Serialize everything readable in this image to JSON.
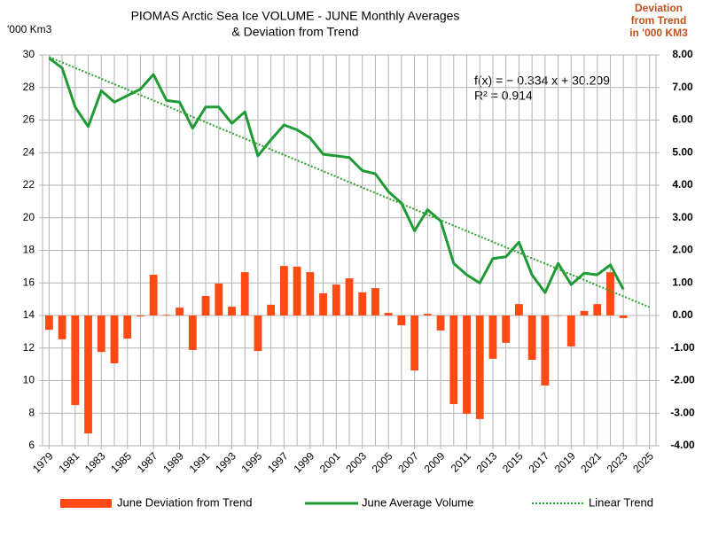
{
  "chart_data": {
    "type": "combo",
    "title": [
      "PIOMAS Arctic Sea Ice VOLUME - JUNE Monthly Averages",
      "& Deviation from Trend"
    ],
    "ylabel": "'000 Km3",
    "y2label": [
      "Deviation",
      "from Trend",
      "in '000 KM3"
    ],
    "annotations": [
      "f(x) = − 0.334 x + 30.209",
      "R² = 0.914"
    ],
    "categories": [
      "1979",
      null,
      "1981",
      null,
      "1983",
      null,
      "1985",
      null,
      "1987",
      null,
      "1989",
      null,
      "1991",
      null,
      "1993",
      null,
      "1995",
      null,
      "1997",
      null,
      "1999",
      null,
      "2001",
      null,
      "2003",
      null,
      "2005",
      null,
      "2007",
      null,
      "2009",
      null,
      "2011",
      null,
      "2013",
      null,
      "2015",
      null,
      "2017",
      null,
      "2019",
      null,
      "2021",
      null,
      "2023",
      null,
      "2025"
    ],
    "ylim": [
      6,
      30
    ],
    "yticks": [
      6,
      8,
      10,
      12,
      14,
      16,
      18,
      20,
      22,
      24,
      26,
      28,
      30
    ],
    "y2lim": [
      -4,
      8
    ],
    "y2ticks": [
      {
        "value": 8,
        "label": "8.00"
      },
      {
        "value": 7,
        "label": "7.00"
      },
      {
        "value": 6,
        "label": "6.00"
      },
      {
        "value": 5,
        "label": "5.00"
      },
      {
        "value": 4,
        "label": "4.00"
      },
      {
        "value": 3,
        "label": "3.00"
      },
      {
        "value": 2,
        "label": "2.00"
      },
      {
        "value": 1,
        "label": "1.00"
      },
      {
        "value": 0,
        "label": "0.00"
      },
      {
        "value": -1,
        "label": "-1.00"
      },
      {
        "value": -2,
        "label": "-2.00"
      },
      {
        "value": -3,
        "label": "-3.00"
      },
      {
        "value": -4,
        "label": "-4.00"
      }
    ],
    "grid": true,
    "series": [
      {
        "name": "June Deviation from Trend",
        "type": "bar",
        "axis": "y2",
        "color": "#ff4a14",
        "values": [
          -0.44,
          -0.73,
          -2.75,
          -3.62,
          -1.12,
          -1.47,
          -0.71,
          -0.03,
          1.25,
          0.02,
          0.24,
          -1.06,
          0.6,
          0.98,
          0.27,
          1.33,
          -1.09,
          0.33,
          1.52,
          1.5,
          1.33,
          0.68,
          0.95,
          1.14,
          0.71,
          0.84,
          0.08,
          -0.3,
          -1.69,
          0.05,
          -0.46,
          -2.72,
          -3.02,
          -3.18,
          -1.33,
          -0.84,
          0.35,
          -1.36,
          -2.15,
          -0.01,
          -0.95,
          0.14,
          0.35,
          1.33,
          -0.08,
          null,
          null
        ]
      },
      {
        "name": "June Average Volume",
        "type": "line",
        "color": "#1f9a35",
        "values": [
          29.8,
          29.2,
          26.8,
          25.6,
          27.8,
          27.1,
          27.5,
          27.9,
          28.8,
          27.2,
          27.1,
          25.5,
          26.8,
          26.8,
          25.8,
          26.5,
          23.8,
          24.8,
          25.7,
          25.4,
          24.9,
          23.9,
          23.8,
          23.7,
          22.9,
          22.7,
          21.6,
          20.9,
          19.2,
          20.5,
          19.8,
          17.2,
          16.5,
          16.0,
          17.5,
          17.6,
          18.5,
          16.5,
          15.4,
          17.2,
          15.9,
          16.6,
          16.5,
          17.1,
          15.6,
          null,
          null
        ]
      },
      {
        "name": "Linear Trend",
        "type": "line",
        "dotted": true,
        "color": "#2aa52a",
        "values": [
          29.875,
          29.541,
          29.207,
          28.873,
          28.539,
          28.205,
          27.871,
          27.537,
          27.203,
          26.869,
          26.535,
          26.201,
          25.867,
          25.533,
          25.199,
          24.865,
          24.531,
          24.197,
          23.863,
          23.529,
          23.195,
          22.861,
          22.527,
          22.193,
          21.859,
          21.525,
          21.191,
          20.857,
          20.523,
          20.189,
          19.855,
          19.521,
          19.187,
          18.853,
          18.519,
          18.185,
          17.851,
          17.517,
          17.183,
          16.849,
          16.515,
          16.181,
          15.847,
          15.513,
          15.179,
          14.845,
          14.511
        ]
      }
    ]
  }
}
